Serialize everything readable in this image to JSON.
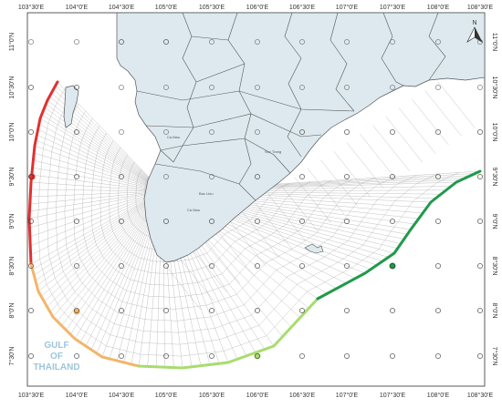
{
  "map": {
    "lon_labels": [
      "103°30'E",
      "104°0'E",
      "104°30'E",
      "105°0'E",
      "105°30'E",
      "106°0'E",
      "106°30'E",
      "107°0'E",
      "107°30'E",
      "108°0'E",
      "108°30'E"
    ],
    "lat_labels": [
      "11°0'N",
      "10°30'N",
      "10°0'N",
      "9°30'N",
      "9°0'N",
      "8°30'N",
      "8°0'N",
      "7°30'N"
    ],
    "gulf_label": [
      "GULF",
      "OF",
      "THAILAND"
    ],
    "place_labels": [
      "Ca Mau",
      "Bac Lieu",
      "Ca Mau",
      "Soc Trang"
    ],
    "compass": "N",
    "colors": {
      "land": "#dde9ef",
      "border": "#555555",
      "grid": "#a8a8a8",
      "boundary_red": "#e23030",
      "boundary_orange": "#f3b56a",
      "boundary_lightgreen": "#a8dc6e",
      "boundary_green": "#1f9a4a",
      "gulf_text": "#9cc6dc"
    },
    "boundary_segments": [
      "west (red)",
      "southwest (orange)",
      "south (light green)",
      "southeast (green)"
    ]
  }
}
